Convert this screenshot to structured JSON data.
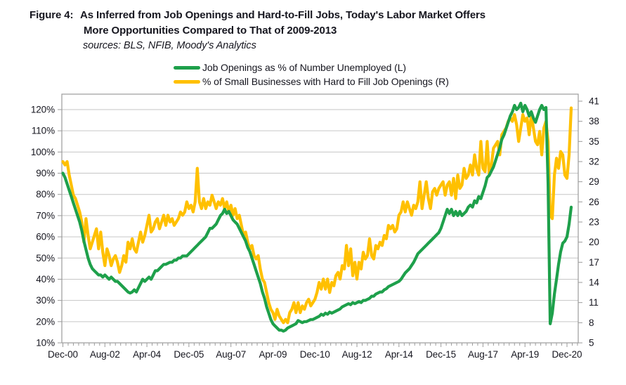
{
  "figure": {
    "title_prefix": "Figure 4:",
    "title_line1": "As Inferred from Job Openings and Hard-to-Fill Jobs, Today's Labor Market Offers",
    "title_line2": "More Opportunities Compared to That of 2009-2013",
    "sources": "sources: BLS, NFIB, Moody's Analytics"
  },
  "legend": [
    {
      "label": "Job Openings as % of Number Unemployed (L)",
      "color": "#1EA04B"
    },
    {
      "label": "% of Small Businesses with Hard to Fill Job Openings (R)",
      "color": "#FFC000"
    }
  ],
  "axes": {
    "left_tick_labels": [
      "120%",
      "110%",
      "100%",
      "90%",
      "80%",
      "70%",
      "60%",
      "50%",
      "40%",
      "30%",
      "20%",
      "10%"
    ],
    "left_tick_values": [
      120,
      110,
      100,
      90,
      80,
      70,
      60,
      50,
      40,
      30,
      20,
      10
    ],
    "right_tick_labels": [
      "41",
      "38",
      "35",
      "32",
      "29",
      "26",
      "23",
      "20",
      "17",
      "14",
      "11",
      "8",
      "5"
    ],
    "right_tick_values": [
      41,
      38,
      35,
      32,
      29,
      26,
      23,
      20,
      17,
      14,
      11,
      8,
      5
    ],
    "x_tick_labels": [
      "Dec-00",
      "Aug-02",
      "Apr-04",
      "Dec-05",
      "Aug-07",
      "Apr-09",
      "Dec-10",
      "Aug-12",
      "Apr-14",
      "Dec-15",
      "Aug-17",
      "Apr-19",
      "Dec-20"
    ]
  },
  "colors": {
    "grid": "#c6c6c6",
    "frame": "#9b9b9b",
    "green": "#1EA04B",
    "yellow": "#FFC000",
    "text": "#16161f"
  },
  "chart_data": {
    "type": "line",
    "title": "Figure 4: As Inferred from Job Openings and Hard-to-Fill Jobs, Today's Labor Market Offers More Opportunities Compared to That of 2009-2013",
    "subtitle": "sources: BLS, NFIB, Moody's Analytics",
    "x_start": "Dec-2000",
    "x_end": "Feb-2021",
    "x_frequency": "monthly",
    "x_tick_labels": [
      "Dec-00",
      "Aug-02",
      "Apr-04",
      "Dec-05",
      "Aug-07",
      "Apr-09",
      "Dec-10",
      "Aug-12",
      "Apr-14",
      "Dec-15",
      "Aug-17",
      "Apr-19",
      "Dec-20"
    ],
    "x_tick_month_positions": [
      0,
      20,
      40,
      60,
      80,
      100,
      120,
      140,
      160,
      180,
      200,
      220,
      240
    ],
    "left_axis": {
      "min": 10,
      "max": 120,
      "step": 10,
      "format": "percent"
    },
    "right_axis": {
      "min": 5,
      "max": 41,
      "step": 3
    },
    "grid": "horizontal",
    "legend_position": "top",
    "series": [
      {
        "name": "Job Openings as % of Number Unemployed (L)",
        "axis": "left",
        "color": "#1EA04B",
        "values": [
          90,
          88,
          85,
          82,
          79,
          76,
          73,
          70,
          67,
          63,
          58,
          54,
          50,
          47,
          45,
          44,
          43,
          42,
          42,
          41,
          42,
          41,
          40,
          41,
          40,
          39,
          39,
          38,
          37,
          36,
          35,
          34,
          33.5,
          34,
          35,
          34,
          36,
          38,
          40,
          39,
          40,
          41,
          40,
          42,
          44,
          44,
          45,
          46,
          47,
          47,
          47.5,
          48,
          48,
          49,
          49,
          50,
          50,
          51,
          51,
          51,
          52,
          53,
          54,
          55,
          56,
          57,
          58,
          59,
          60,
          62,
          64,
          64,
          65,
          66,
          68,
          70,
          71,
          73,
          71,
          72,
          70,
          68,
          67,
          66,
          64,
          62,
          60,
          58,
          55,
          53,
          50,
          47,
          44,
          41,
          38,
          34,
          31,
          27,
          24,
          21,
          19,
          18,
          17,
          16,
          16,
          15.5,
          16,
          17,
          17.5,
          18,
          18.5,
          19,
          20.5,
          20,
          19.5,
          20,
          20,
          20.5,
          21,
          21,
          21.5,
          22,
          22.5,
          23.5,
          23,
          24,
          23.5,
          24.5,
          24,
          24.5,
          25,
          25.5,
          26,
          27,
          27.5,
          28,
          28.5,
          28,
          29,
          28.5,
          29,
          29.5,
          29,
          30,
          30,
          30.5,
          31,
          32,
          32,
          33,
          33.5,
          34,
          34,
          35,
          35.5,
          36.5,
          37,
          37.5,
          38,
          38.5,
          39,
          40,
          41.5,
          43,
          44,
          45,
          46.5,
          48,
          50,
          52,
          53,
          54,
          55,
          56,
          57,
          58,
          59,
          60,
          61,
          62,
          64,
          67,
          70,
          73,
          71,
          73,
          70,
          72,
          70,
          72,
          70,
          71,
          72,
          74,
          75,
          74,
          77,
          76,
          79,
          78,
          81,
          84,
          88,
          89,
          91,
          93,
          96,
          99,
          102,
          106,
          108,
          111,
          114,
          117,
          119,
          122,
          120,
          121,
          123,
          119,
          122,
          120,
          117,
          119,
          116,
          114,
          117,
          120,
          122,
          120,
          121,
          85,
          19,
          24,
          33,
          40,
          47,
          53,
          57,
          58,
          60,
          66,
          74
        ]
      },
      {
        "name": "% of Small Businesses with Hard to Fill Job Openings (R)",
        "axis": "right",
        "color": "#FFC000",
        "values": [
          32,
          31.5,
          32,
          30,
          28.5,
          27,
          26.5,
          25.5,
          24.5,
          23,
          20,
          23.5,
          21,
          19,
          20,
          21,
          22,
          19,
          21.5,
          18.5,
          16.5,
          19,
          18,
          16.5,
          17.5,
          18,
          17,
          15.5,
          16.5,
          18,
          17,
          20,
          19,
          20.5,
          19,
          18.5,
          20,
          21.5,
          20,
          21,
          22.5,
          24,
          21.5,
          22,
          23,
          23.5,
          22,
          23,
          24,
          22.5,
          24,
          23,
          23.5,
          22.5,
          23,
          23.5,
          24.5,
          24,
          24.5,
          26,
          25,
          25.5,
          24.5,
          26,
          31,
          26,
          25,
          26.5,
          25,
          26,
          25.5,
          27,
          26,
          25,
          26,
          25.5,
          26.5,
          25,
          26,
          24.5,
          25.5,
          24,
          25,
          23.5,
          24,
          22.5,
          21,
          21.5,
          20,
          19,
          19.5,
          18,
          17.5,
          18,
          16,
          14.5,
          14,
          12.5,
          11,
          10,
          9.5,
          8.5,
          10,
          9,
          8.5,
          8,
          8.5,
          8,
          9.5,
          10,
          11,
          9.5,
          11,
          9.5,
          10.5,
          10,
          11,
          11.5,
          10.5,
          11,
          11.5,
          12.5,
          14,
          13,
          14.5,
          13,
          14.5,
          12.5,
          14,
          13.5,
          15,
          15.5,
          14.5,
          16.5,
          16,
          19.5,
          16.5,
          19,
          15,
          17,
          14.5,
          17,
          16,
          18.5,
          17.5,
          18,
          20.5,
          18,
          17.5,
          19.5,
          19,
          20,
          19.5,
          21,
          20.5,
          22.5,
          22,
          22.5,
          21.5,
          22,
          24,
          24.5,
          26,
          24.5,
          26,
          25,
          24,
          25.5,
          25,
          26,
          29,
          25,
          27,
          29,
          26.5,
          25,
          27.5,
          28,
          27,
          28,
          28.5,
          29,
          27,
          28.5,
          29,
          27,
          29.5,
          26.5,
          30,
          28,
          28.5,
          31,
          29.5,
          30,
          31.5,
          30,
          33,
          31,
          30,
          35,
          31,
          30.5,
          35,
          30,
          31.5,
          34,
          34.5,
          35,
          33,
          36,
          36.5,
          37,
          38,
          38.5,
          38,
          39,
          37.5,
          35,
          37,
          39,
          38,
          38.5,
          36,
          39,
          37,
          35,
          34.5,
          36.5,
          33,
          37,
          38,
          35,
          24,
          23.5,
          30,
          32.5,
          31,
          33.5,
          33,
          30,
          29.5,
          33,
          40
        ]
      }
    ]
  }
}
